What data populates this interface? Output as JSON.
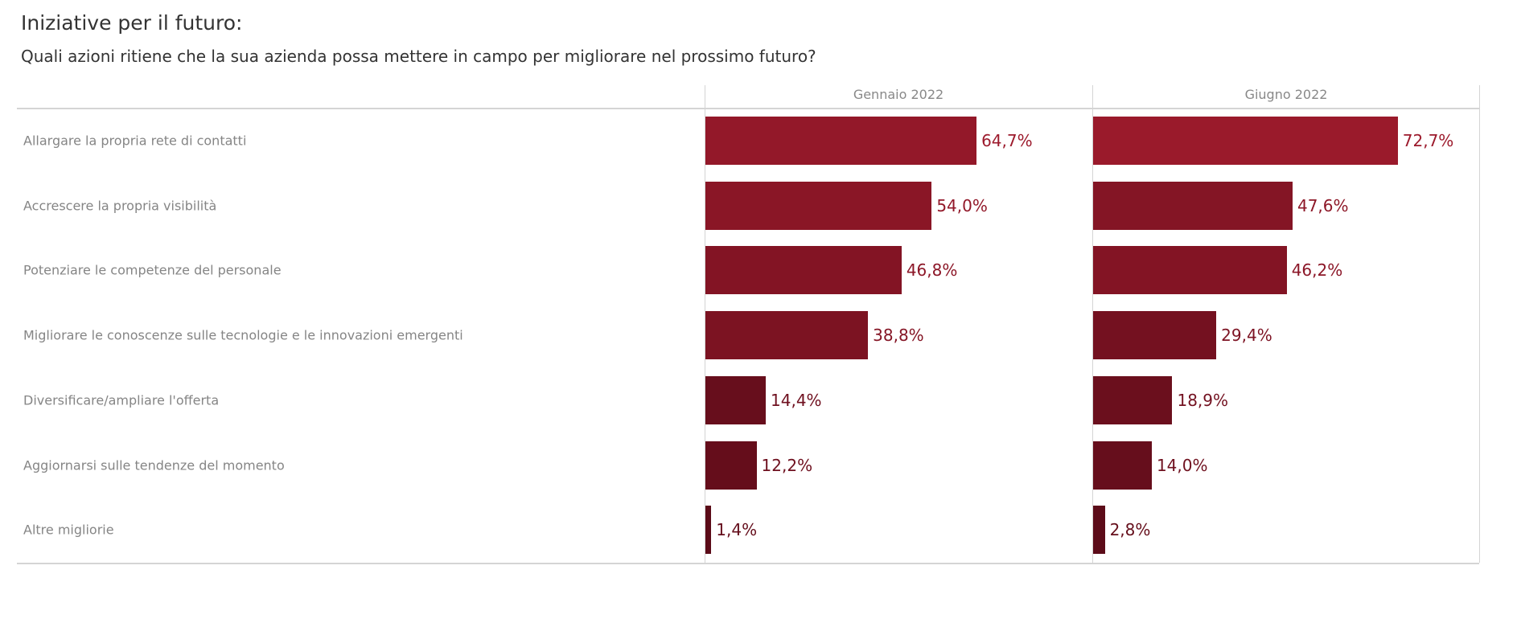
{
  "title": "Iniziative per il futuro:",
  "subtitle": "Quali azioni ritiene che la sua azienda possa mettere in campo per migliorare nel prossimo futuro?",
  "colors": {
    "high": "#9c1a2c",
    "low": "#5a0b18"
  },
  "chart_data": {
    "type": "bar",
    "orientation": "horizontal",
    "categories": [
      "Allargare la propria rete di contatti",
      "Accrescere la propria visibilità",
      "Potenziare le competenze del personale",
      "Migliorare le conoscenze sulle tecnologie e le innovazioni emergenti",
      "Diversificare/ampliare l'offerta",
      "Aggiornarsi sulle tendenze del momento",
      "Altre migliorie"
    ],
    "series": [
      {
        "name": "Gennaio 2022",
        "values": [
          64.7,
          54.0,
          46.8,
          38.8,
          14.4,
          12.2,
          1.4
        ],
        "labels": [
          "64,7%",
          "54,0%",
          "46,8%",
          "38,8%",
          "14,4%",
          "12,2%",
          "1,4%"
        ]
      },
      {
        "name": "Giugno 2022",
        "values": [
          72.7,
          47.6,
          46.2,
          29.4,
          18.9,
          14.0,
          2.8
        ],
        "labels": [
          "72,7%",
          "47,6%",
          "46,2%",
          "29,4%",
          "18,9%",
          "14,0%",
          "2,8%"
        ]
      }
    ],
    "xlim": [
      0,
      100
    ],
    "unit": "%",
    "grid": false,
    "legend": "none"
  }
}
